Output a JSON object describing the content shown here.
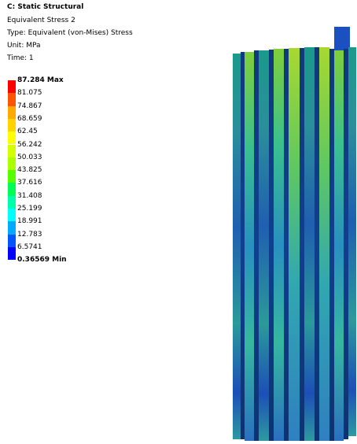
{
  "header": {
    "title": "C: Static Structural",
    "subtitle": "Equivalent Stress 2",
    "type": "Type: Equivalent (von-Mises) Stress",
    "unit": "Unit: MPa",
    "time": "Time: 1"
  },
  "legend": {
    "labels": [
      "87.284 Max",
      "81.075",
      "74.867",
      "68.659",
      "62.45",
      "56.242",
      "50.033",
      "43.825",
      "37.616",
      "31.408",
      "25.199",
      "18.991",
      "12.783",
      "6.5741",
      "0.36569 Min"
    ],
    "colors": [
      "#ff0000",
      "#ff5500",
      "#ffaa00",
      "#ffd400",
      "#ffff00",
      "#d4ff00",
      "#aaff00",
      "#55ff00",
      "#00ff55",
      "#00ffaa",
      "#00ffff",
      "#00aaff",
      "#0055ff",
      "#0000ff"
    ]
  }
}
